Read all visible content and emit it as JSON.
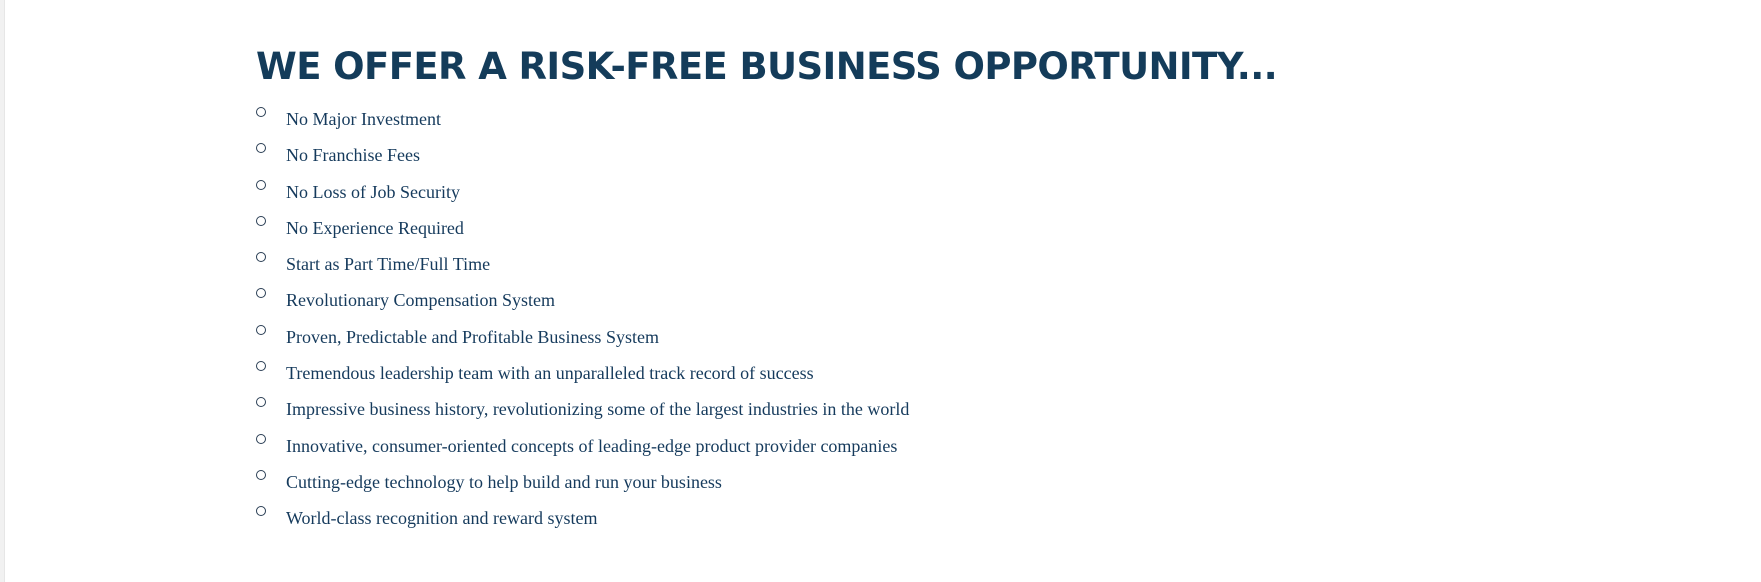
{
  "heading": "WE OFFER A RISK-FREE BUSINESS OPPORTUNITY...",
  "benefits": [
    "No Major Investment",
    "No Franchise Fees",
    "No Loss of Job Security",
    "No Experience Required",
    "Start as Part Time/Full Time",
    "Revolutionary Compensation System",
    "Proven, Predictable and Profitable Business System",
    "Tremendous leadership team with an unparalleled track record of success",
    "Impressive business history, revolutionizing some of the largest industries in the world",
    "Innovative, consumer-oriented concepts of leading-edge product provider companies",
    "Cutting-edge technology to help build and run your business",
    "World-class recognition and reward system"
  ],
  "colors": {
    "heading": "#143c5a",
    "text": "#153a5c",
    "bullet_border": "#2b3f55"
  },
  "icons": {
    "bullet": "hollow-circle-bullet-icon"
  }
}
